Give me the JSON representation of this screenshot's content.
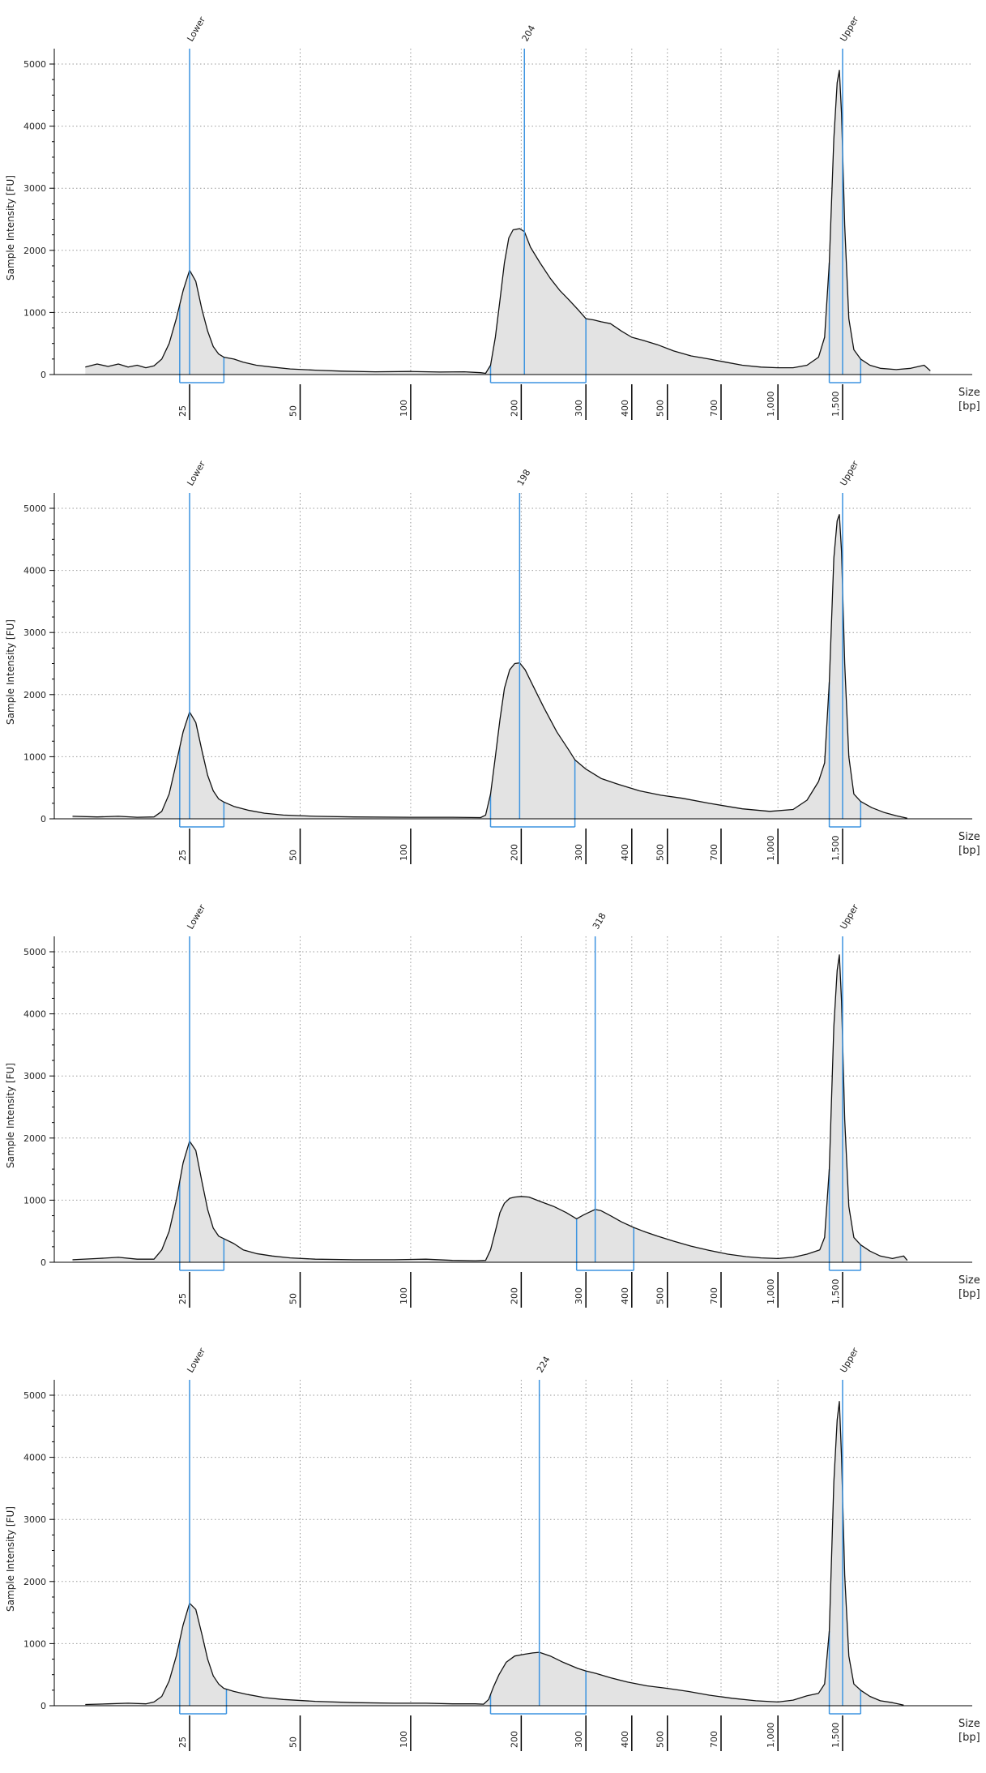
{
  "colors": {
    "marker": "#3d94e0",
    "trace": "#111111",
    "fill": "#e3e3e3",
    "grid": "#9a9a9a",
    "axis": "#000000"
  },
  "layout": {
    "panel_top": [
      0,
      548,
      1095,
      1642
    ]
  },
  "chart_data": [
    {
      "type": "area",
      "ylabel": "Sample Intensity [FU]",
      "xlabel": "Size",
      "xunit": "[bp]",
      "ylim": [
        0,
        5250
      ],
      "yticks": [
        0,
        1000,
        2000,
        3000,
        4000,
        5000
      ],
      "grid": true,
      "xticks": [
        25,
        50,
        100,
        200,
        300,
        400,
        500,
        700,
        1000,
        1500
      ],
      "xtick_labels": [
        "25",
        "50",
        "100",
        "200",
        "300",
        "400",
        "500",
        "700",
        "1,000",
        "1,500"
      ],
      "xrange": [
        11,
        3500
      ],
      "peaks": [
        {
          "label": "Lower",
          "size": 25
        },
        {
          "label": "204",
          "size": 204
        },
        {
          "label": "Upper",
          "size": 1500
        }
      ],
      "regions": [
        [
          23.5,
          31
        ],
        [
          165,
          300
        ],
        [
          1380,
          1680
        ]
      ],
      "trace": [
        [
          13,
          120
        ],
        [
          14,
          170
        ],
        [
          15,
          130
        ],
        [
          16,
          170
        ],
        [
          17,
          120
        ],
        [
          18,
          150
        ],
        [
          19,
          110
        ],
        [
          20,
          140
        ],
        [
          21,
          250
        ],
        [
          22,
          500
        ],
        [
          23,
          900
        ],
        [
          24,
          1350
        ],
        [
          25,
          1680
        ],
        [
          26,
          1500
        ],
        [
          27,
          1050
        ],
        [
          28,
          700
        ],
        [
          29,
          450
        ],
        [
          30,
          330
        ],
        [
          31,
          280
        ],
        [
          33,
          250
        ],
        [
          35,
          200
        ],
        [
          38,
          150
        ],
        [
          42,
          120
        ],
        [
          47,
          90
        ],
        [
          55,
          70
        ],
        [
          65,
          55
        ],
        [
          80,
          45
        ],
        [
          100,
          50
        ],
        [
          120,
          40
        ],
        [
          140,
          45
        ],
        [
          155,
          30
        ],
        [
          160,
          20
        ],
        [
          165,
          150
        ],
        [
          170,
          600
        ],
        [
          175,
          1200
        ],
        [
          180,
          1800
        ],
        [
          185,
          2200
        ],
        [
          190,
          2330
        ],
        [
          198,
          2350
        ],
        [
          204,
          2300
        ],
        [
          212,
          2050
        ],
        [
          225,
          1800
        ],
        [
          240,
          1550
        ],
        [
          255,
          1350
        ],
        [
          270,
          1200
        ],
        [
          285,
          1050
        ],
        [
          300,
          900
        ],
        [
          315,
          880
        ],
        [
          330,
          850
        ],
        [
          350,
          820
        ],
        [
          375,
          700
        ],
        [
          400,
          600
        ],
        [
          430,
          550
        ],
        [
          470,
          480
        ],
        [
          520,
          380
        ],
        [
          580,
          300
        ],
        [
          650,
          250
        ],
        [
          720,
          200
        ],
        [
          800,
          150
        ],
        [
          900,
          120
        ],
        [
          1000,
          110
        ],
        [
          1100,
          110
        ],
        [
          1200,
          150
        ],
        [
          1290,
          280
        ],
        [
          1340,
          600
        ],
        [
          1380,
          1800
        ],
        [
          1420,
          3800
        ],
        [
          1450,
          4700
        ],
        [
          1470,
          4900
        ],
        [
          1490,
          4200
        ],
        [
          1520,
          2400
        ],
        [
          1560,
          900
        ],
        [
          1610,
          400
        ],
        [
          1680,
          250
        ],
        [
          1780,
          150
        ],
        [
          1900,
          100
        ],
        [
          2100,
          80
        ],
        [
          2300,
          100
        ],
        [
          2500,
          150
        ],
        [
          2600,
          60
        ]
      ]
    },
    {
      "type": "area",
      "ylabel": "Sample Intensity [FU]",
      "xlabel": "Size",
      "xunit": "[bp]",
      "ylim": [
        0,
        5250
      ],
      "yticks": [
        0,
        1000,
        2000,
        3000,
        4000,
        5000
      ],
      "grid": true,
      "xticks": [
        25,
        50,
        100,
        200,
        300,
        400,
        500,
        700,
        1000,
        1500
      ],
      "xtick_labels": [
        "25",
        "50",
        "100",
        "200",
        "300",
        "400",
        "500",
        "700",
        "1,000",
        "1,500"
      ],
      "xrange": [
        11,
        3500
      ],
      "peaks": [
        {
          "label": "Lower",
          "size": 25
        },
        {
          "label": "198",
          "size": 198
        },
        {
          "label": "Upper",
          "size": 1500
        }
      ],
      "regions": [
        [
          23.5,
          31
        ],
        [
          165,
          280
        ],
        [
          1380,
          1680
        ]
      ],
      "trace": [
        [
          12,
          40
        ],
        [
          14,
          30
        ],
        [
          16,
          40
        ],
        [
          18,
          25
        ],
        [
          20,
          30
        ],
        [
          21,
          120
        ],
        [
          22,
          400
        ],
        [
          23,
          900
        ],
        [
          24,
          1400
        ],
        [
          25,
          1720
        ],
        [
          26,
          1550
        ],
        [
          27,
          1100
        ],
        [
          28,
          700
        ],
        [
          29,
          450
        ],
        [
          30,
          320
        ],
        [
          31,
          270
        ],
        [
          33,
          200
        ],
        [
          36,
          140
        ],
        [
          40,
          90
        ],
        [
          45,
          60
        ],
        [
          55,
          40
        ],
        [
          70,
          30
        ],
        [
          100,
          25
        ],
        [
          130,
          25
        ],
        [
          155,
          20
        ],
        [
          160,
          60
        ],
        [
          165,
          400
        ],
        [
          170,
          1000
        ],
        [
          175,
          1600
        ],
        [
          180,
          2100
        ],
        [
          186,
          2400
        ],
        [
          192,
          2500
        ],
        [
          198,
          2510
        ],
        [
          205,
          2400
        ],
        [
          215,
          2150
        ],
        [
          230,
          1800
        ],
        [
          250,
          1400
        ],
        [
          270,
          1100
        ],
        [
          280,
          950
        ],
        [
          300,
          800
        ],
        [
          330,
          650
        ],
        [
          370,
          550
        ],
        [
          420,
          450
        ],
        [
          480,
          380
        ],
        [
          550,
          330
        ],
        [
          650,
          250
        ],
        [
          800,
          160
        ],
        [
          950,
          120
        ],
        [
          1100,
          150
        ],
        [
          1200,
          300
        ],
        [
          1290,
          600
        ],
        [
          1340,
          900
        ],
        [
          1380,
          2200
        ],
        [
          1420,
          4200
        ],
        [
          1450,
          4800
        ],
        [
          1470,
          4900
        ],
        [
          1490,
          4300
        ],
        [
          1520,
          2500
        ],
        [
          1560,
          1000
        ],
        [
          1610,
          400
        ],
        [
          1680,
          280
        ],
        [
          1800,
          180
        ],
        [
          1950,
          100
        ],
        [
          2100,
          50
        ],
        [
          2250,
          10
        ]
      ]
    },
    {
      "type": "area",
      "ylabel": "Sample Intensity [FU]",
      "xlabel": "Size",
      "xunit": "[bp]",
      "ylim": [
        0,
        5250
      ],
      "yticks": [
        0,
        1000,
        2000,
        3000,
        4000,
        5000
      ],
      "grid": true,
      "xticks": [
        25,
        50,
        100,
        200,
        300,
        400,
        500,
        700,
        1000,
        1500
      ],
      "xtick_labels": [
        "25",
        "50",
        "100",
        "200",
        "300",
        "400",
        "500",
        "700",
        "1,000",
        "1,500"
      ],
      "xrange": [
        11,
        3500
      ],
      "peaks": [
        {
          "label": "Lower",
          "size": 25
        },
        {
          "label": "318",
          "size": 318
        },
        {
          "label": "Upper",
          "size": 1500
        }
      ],
      "regions": [
        [
          23.5,
          31
        ],
        [
          283,
          405
        ],
        [
          1380,
          1680
        ]
      ],
      "trace": [
        [
          12,
          40
        ],
        [
          14,
          60
        ],
        [
          16,
          80
        ],
        [
          18,
          50
        ],
        [
          20,
          50
        ],
        [
          21,
          200
        ],
        [
          22,
          500
        ],
        [
          23,
          1000
        ],
        [
          24,
          1600
        ],
        [
          25,
          1950
        ],
        [
          26,
          1800
        ],
        [
          27,
          1300
        ],
        [
          28,
          850
        ],
        [
          29,
          550
        ],
        [
          30,
          420
        ],
        [
          31,
          380
        ],
        [
          33,
          300
        ],
        [
          35,
          200
        ],
        [
          38,
          140
        ],
        [
          42,
          100
        ],
        [
          47,
          70
        ],
        [
          55,
          50
        ],
        [
          70,
          40
        ],
        [
          90,
          40
        ],
        [
          110,
          50
        ],
        [
          130,
          30
        ],
        [
          150,
          25
        ],
        [
          160,
          30
        ],
        [
          165,
          200
        ],
        [
          170,
          500
        ],
        [
          175,
          800
        ],
        [
          180,
          950
        ],
        [
          186,
          1030
        ],
        [
          192,
          1050
        ],
        [
          200,
          1060
        ],
        [
          210,
          1050
        ],
        [
          225,
          980
        ],
        [
          245,
          900
        ],
        [
          265,
          800
        ],
        [
          283,
          700
        ],
        [
          295,
          760
        ],
        [
          305,
          800
        ],
        [
          318,
          850
        ],
        [
          330,
          830
        ],
        [
          350,
          750
        ],
        [
          375,
          650
        ],
        [
          405,
          560
        ],
        [
          430,
          500
        ],
        [
          470,
          420
        ],
        [
          520,
          340
        ],
        [
          580,
          260
        ],
        [
          650,
          190
        ],
        [
          730,
          130
        ],
        [
          820,
          90
        ],
        [
          900,
          70
        ],
        [
          1000,
          60
        ],
        [
          1100,
          80
        ],
        [
          1200,
          130
        ],
        [
          1300,
          200
        ],
        [
          1340,
          400
        ],
        [
          1380,
          1500
        ],
        [
          1420,
          3800
        ],
        [
          1450,
          4700
        ],
        [
          1470,
          4950
        ],
        [
          1490,
          4200
        ],
        [
          1520,
          2300
        ],
        [
          1560,
          900
        ],
        [
          1610,
          400
        ],
        [
          1680,
          280
        ],
        [
          1780,
          180
        ],
        [
          1900,
          100
        ],
        [
          2050,
          60
        ],
        [
          2200,
          100
        ],
        [
          2250,
          30
        ]
      ]
    },
    {
      "type": "area",
      "ylabel": "Sample Intensity [FU]",
      "xlabel": "Size",
      "xunit": "[bp]",
      "ylim": [
        0,
        5250
      ],
      "yticks": [
        0,
        1000,
        2000,
        3000,
        4000,
        5000
      ],
      "grid": true,
      "xticks": [
        25,
        50,
        100,
        200,
        300,
        400,
        500,
        700,
        1000,
        1500
      ],
      "xtick_labels": [
        "25",
        "50",
        "100",
        "200",
        "300",
        "400",
        "500",
        "700",
        "1,000",
        "1,500"
      ],
      "xrange": [
        11,
        3500
      ],
      "peaks": [
        {
          "label": "Lower",
          "size": 25
        },
        {
          "label": "224",
          "size": 224
        },
        {
          "label": "Upper",
          "size": 1500
        }
      ],
      "regions": [
        [
          23.5,
          31.5
        ],
        [
          165,
          300
        ],
        [
          1380,
          1680
        ]
      ],
      "trace": [
        [
          13,
          20
        ],
        [
          15,
          30
        ],
        [
          17,
          40
        ],
        [
          19,
          30
        ],
        [
          20,
          60
        ],
        [
          21,
          150
        ],
        [
          22,
          400
        ],
        [
          23,
          800
        ],
        [
          24,
          1300
        ],
        [
          25,
          1650
        ],
        [
          26,
          1550
        ],
        [
          27,
          1150
        ],
        [
          28,
          750
        ],
        [
          29,
          480
        ],
        [
          30,
          350
        ],
        [
          31,
          280
        ],
        [
          33,
          230
        ],
        [
          36,
          180
        ],
        [
          40,
          130
        ],
        [
          45,
          100
        ],
        [
          55,
          70
        ],
        [
          70,
          50
        ],
        [
          90,
          40
        ],
        [
          110,
          40
        ],
        [
          130,
          30
        ],
        [
          150,
          30
        ],
        [
          158,
          25
        ],
        [
          163,
          100
        ],
        [
          168,
          300
        ],
        [
          174,
          500
        ],
        [
          182,
          700
        ],
        [
          192,
          800
        ],
        [
          205,
          830
        ],
        [
          215,
          850
        ],
        [
          224,
          860
        ],
        [
          240,
          800
        ],
        [
          260,
          700
        ],
        [
          285,
          600
        ],
        [
          300,
          560
        ],
        [
          320,
          520
        ],
        [
          350,
          450
        ],
        [
          390,
          380
        ],
        [
          440,
          320
        ],
        [
          500,
          280
        ],
        [
          570,
          230
        ],
        [
          650,
          170
        ],
        [
          750,
          120
        ],
        [
          870,
          80
        ],
        [
          1000,
          60
        ],
        [
          1100,
          90
        ],
        [
          1200,
          160
        ],
        [
          1290,
          200
        ],
        [
          1340,
          350
        ],
        [
          1380,
          1200
        ],
        [
          1420,
          3600
        ],
        [
          1450,
          4600
        ],
        [
          1470,
          4900
        ],
        [
          1490,
          4000
        ],
        [
          1520,
          2100
        ],
        [
          1560,
          800
        ],
        [
          1610,
          350
        ],
        [
          1680,
          250
        ],
        [
          1780,
          150
        ],
        [
          1900,
          80
        ],
        [
          2050,
          50
        ],
        [
          2200,
          10
        ]
      ]
    }
  ]
}
